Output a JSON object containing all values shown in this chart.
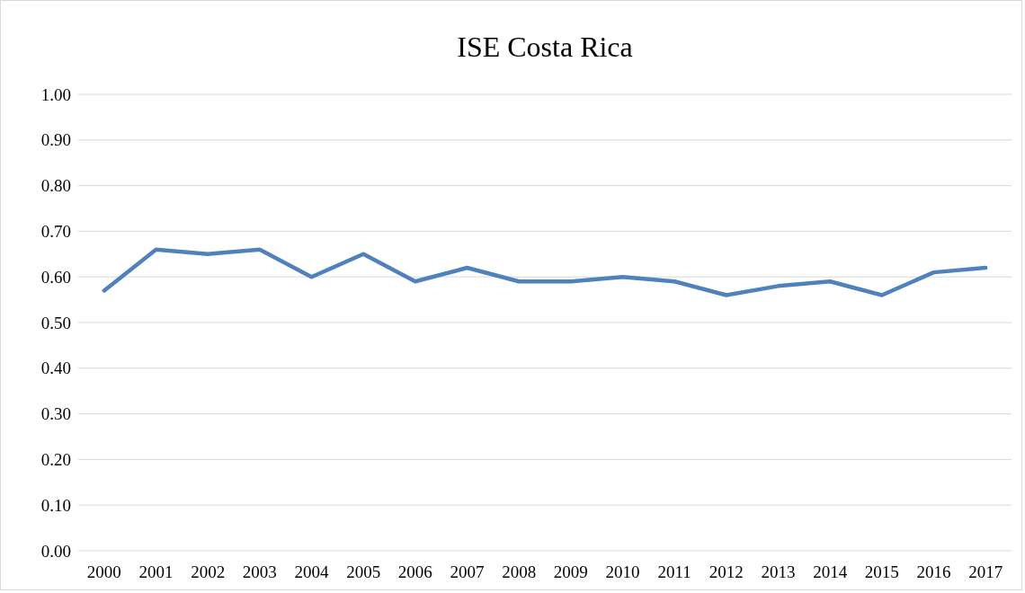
{
  "chart_data": {
    "type": "line",
    "title": "ISE Costa Rica",
    "categories": [
      "2000",
      "2001",
      "2002",
      "2003",
      "2004",
      "2005",
      "2006",
      "2007",
      "2008",
      "2009",
      "2010",
      "2011",
      "2012",
      "2013",
      "2014",
      "2015",
      "2016",
      "2017"
    ],
    "series": [
      {
        "color": "#4f81bd",
        "values": [
          0.57,
          0.66,
          0.65,
          0.66,
          0.6,
          0.65,
          0.59,
          0.62,
          0.59,
          0.59,
          0.6,
          0.59,
          0.56,
          0.58,
          0.59,
          0.56,
          0.61,
          0.62
        ]
      }
    ],
    "ylim": [
      0,
      1
    ],
    "yticks": [
      {
        "value": 0,
        "label": "0.00"
      },
      {
        "value": 0.1,
        "label": "0.10"
      },
      {
        "value": 0.2,
        "label": "0.20"
      },
      {
        "value": 0.3,
        "label": "0.30"
      },
      {
        "value": 0.4,
        "label": "0.40"
      },
      {
        "value": 0.5,
        "label": "0.50"
      },
      {
        "value": 0.6,
        "label": "0.60"
      },
      {
        "value": 0.7,
        "label": "0.70"
      },
      {
        "value": 0.8,
        "label": "0.80"
      },
      {
        "value": 0.9,
        "label": "0.90"
      },
      {
        "value": 1,
        "label": "1.00"
      }
    ],
    "grid": "y",
    "marker": "none",
    "line_style": "solid"
  }
}
